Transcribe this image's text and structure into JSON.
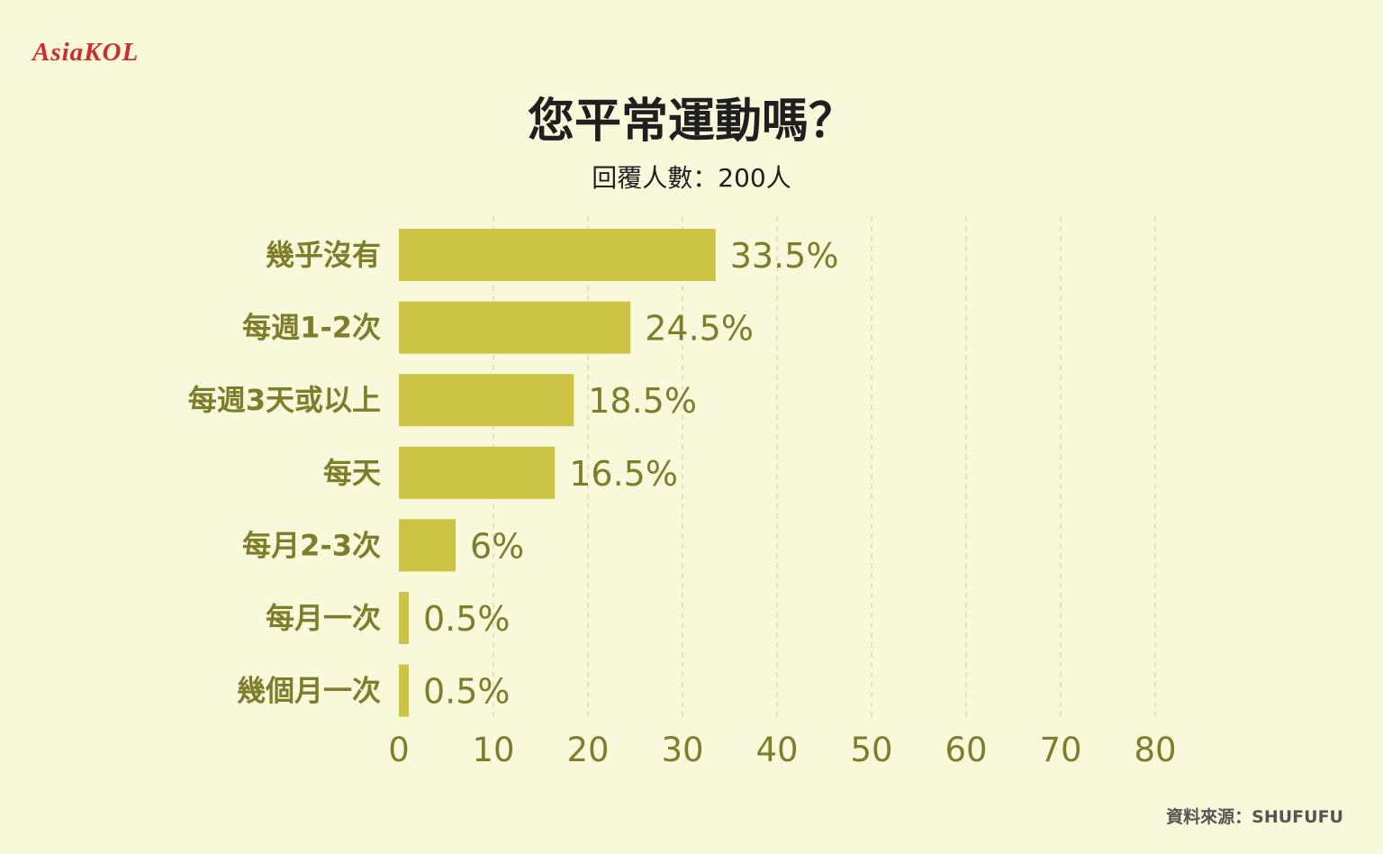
{
  "logo": {
    "text": "AsiaKOL"
  },
  "header": {
    "title": "您平常運動嗎？",
    "subtitle": "回覆人數：200人"
  },
  "source": "資料來源：SHUFUFU",
  "colors": {
    "background": "#f8f8da",
    "bar": "#cbc444",
    "label": "#7d7d2a",
    "logo": "#d42a2a"
  },
  "chart_data": {
    "type": "bar",
    "orientation": "horizontal",
    "title": "您平常運動嗎？",
    "subtitle": "回覆人數：200人",
    "categories": [
      "幾乎沒有",
      "每週1-2次",
      "每週3天或以上",
      "每天",
      "每月2-3次",
      "每月一次",
      "幾個月一次"
    ],
    "values": [
      33.5,
      24.5,
      18.5,
      16.5,
      6,
      0.5,
      0.5
    ],
    "value_labels": [
      "33.5%",
      "24.5%",
      "18.5%",
      "16.5%",
      "6%",
      "0.5%",
      "0.5%"
    ],
    "x_ticks": [
      "0",
      "10",
      "20",
      "30",
      "40",
      "50",
      "60",
      "70",
      "80"
    ],
    "xlim": [
      0,
      80
    ],
    "grid": true
  }
}
